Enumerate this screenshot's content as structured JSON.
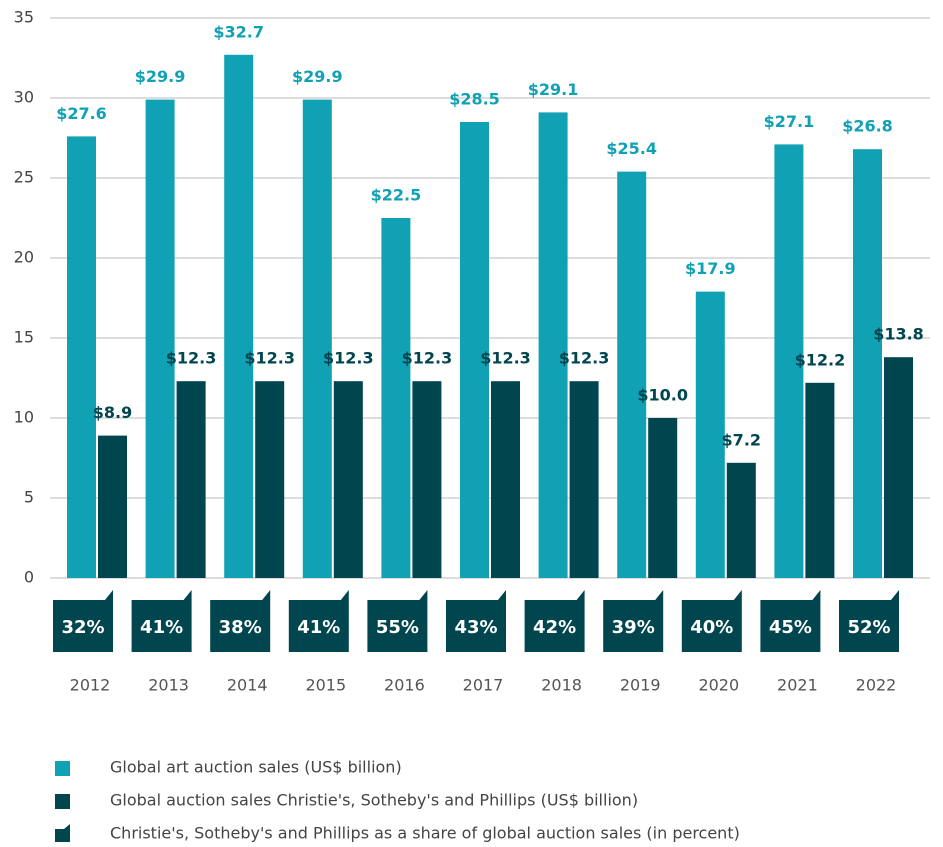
{
  "chart_data": {
    "type": "bar",
    "categories": [
      "2012",
      "2013",
      "2014",
      "2015",
      "2016",
      "2017",
      "2018",
      "2019",
      "2020",
      "2021",
      "2022"
    ],
    "series": [
      {
        "name": "Global art auction sales (US$ billion)",
        "color": "#10a2b4",
        "values": [
          27.6,
          29.9,
          32.7,
          29.9,
          22.5,
          28.5,
          29.1,
          25.4,
          17.9,
          27.1,
          26.8
        ],
        "value_labels": [
          "$27.6",
          "$29.9",
          "$32.7",
          "$29.9",
          "$22.5",
          "$28.5",
          "$29.1",
          "$25.4",
          "$17.9",
          "$27.1",
          "$26.8"
        ]
      },
      {
        "name": "Global auction sales Christie's, Sotheby's and Phillips (US$ billion)",
        "color": "#01454f",
        "values": [
          8.9,
          12.3,
          12.3,
          12.3,
          12.3,
          12.3,
          12.3,
          10.0,
          7.2,
          12.2,
          13.8
        ],
        "value_labels": [
          "$8.9",
          "$12.3",
          "$12.3",
          "$12.3",
          "$12.3",
          "$12.3",
          "$12.3",
          "$10.0",
          "$7.2",
          "$12.2",
          "$13.8"
        ]
      }
    ],
    "share": {
      "name": "Christie's, Sotheby's and Phillips as a share of global auction sales (in percent)",
      "color": "#01454f",
      "values": [
        32,
        41,
        38,
        41,
        55,
        43,
        42,
        39,
        40,
        45,
        52
      ],
      "value_labels": [
        "32%",
        "41%",
        "38%",
        "41%",
        "55%",
        "43%",
        "42%",
        "39%",
        "40%",
        "45%",
        "52%"
      ]
    },
    "ylim": [
      0,
      35
    ],
    "yticks": [
      0,
      5,
      10,
      15,
      20,
      25,
      30,
      35
    ],
    "grid": true
  }
}
